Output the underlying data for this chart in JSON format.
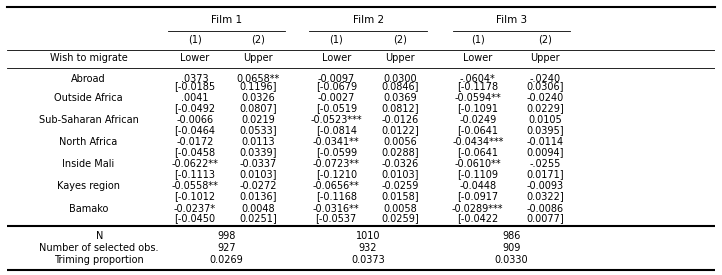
{
  "film_headers": [
    "Film 1",
    "Film 2",
    "Film 3"
  ],
  "col_headers": [
    "(1)",
    "(2)",
    "(1)",
    "(2)",
    "(1)",
    "(2)"
  ],
  "row_groups": [
    {
      "label1": "Wish to migrate",
      "label2": "Abroad",
      "values": [
        ".0373",
        "0.0658**",
        "-0.0097",
        "0.0300",
        "-.0604*",
        "-.0240"
      ],
      "ci": [
        "[-0.0185",
        "0.1196]",
        "[-0.0679",
        "0.0846]",
        "[-0.1178",
        "0.0306]"
      ]
    },
    {
      "label1": "Outside Africa",
      "label2": "",
      "values": [
        ".0041",
        "0.0326",
        "-0.0027",
        "0.0369",
        "-0.0594**",
        "-0.0240"
      ],
      "ci": [
        "[-0.0492",
        "0.0807]",
        "[-0.0519",
        "0.0812]",
        "[-0.1091",
        "0.0229]"
      ]
    },
    {
      "label1": "Sub-Saharan African",
      "label2": "",
      "values": [
        "-0.0066",
        "0.0219",
        "-0.0523***",
        "-0.0126",
        "-0.0249",
        "0.0105"
      ],
      "ci": [
        "[-0.0464",
        "0.0533]",
        "[-0.0814",
        "0.0122]",
        "[-0.0641",
        "0.0395]"
      ]
    },
    {
      "label1": "North Africa",
      "label2": "",
      "values": [
        "-0.0172",
        "0.0113",
        "-0.0341**",
        "0.0056",
        "-0.0434***",
        "-0.0114"
      ],
      "ci": [
        "[-0.0458",
        "0.0339]",
        "[-0.0599",
        "0.0288]",
        "[-0.0641",
        "0.0094]"
      ]
    },
    {
      "label1": "Inside Mali",
      "label2": "",
      "values": [
        "-0.0622**",
        "-0.0337",
        "-0.0723**",
        "-0.0326",
        "-0.0610**",
        "-.0255"
      ],
      "ci": [
        "[-0.1113",
        "0.0103]",
        "[-0.1210",
        "0.0103]",
        "[-0.1109",
        "0.0171]"
      ]
    },
    {
      "label1": "Kayes region",
      "label2": "",
      "values": [
        "-0.0558**",
        "-0.0272",
        "-0.0656**",
        "-0.0259",
        "-0.0448",
        "-0.0093"
      ],
      "ci": [
        "[-0.1012",
        "0.0136]",
        "[-0.1168",
        "0.0158]",
        "[-0.0917",
        "0.0322]"
      ]
    },
    {
      "label1": "Bamako",
      "label2": "",
      "values": [
        "-0.0237*",
        "0.0048",
        "-0.0316**",
        "0.0058",
        "-0.0289***",
        "-0.0086"
      ],
      "ci": [
        "[-0.0450",
        "0.0251]",
        "[-0.0537",
        "0.0259]",
        "[-0.0422",
        "0.0077]"
      ]
    }
  ],
  "footer_rows": [
    {
      "label": "N",
      "values": [
        "998",
        "1010",
        "986"
      ]
    },
    {
      "label": "Number of selected obs.",
      "values": [
        "927",
        "932",
        "909"
      ]
    },
    {
      "label": "Triming proportion",
      "values": [
        "0.0269",
        "0.0373",
        "0.0330"
      ]
    }
  ],
  "background_color": "#ffffff",
  "font_size": 7.0
}
